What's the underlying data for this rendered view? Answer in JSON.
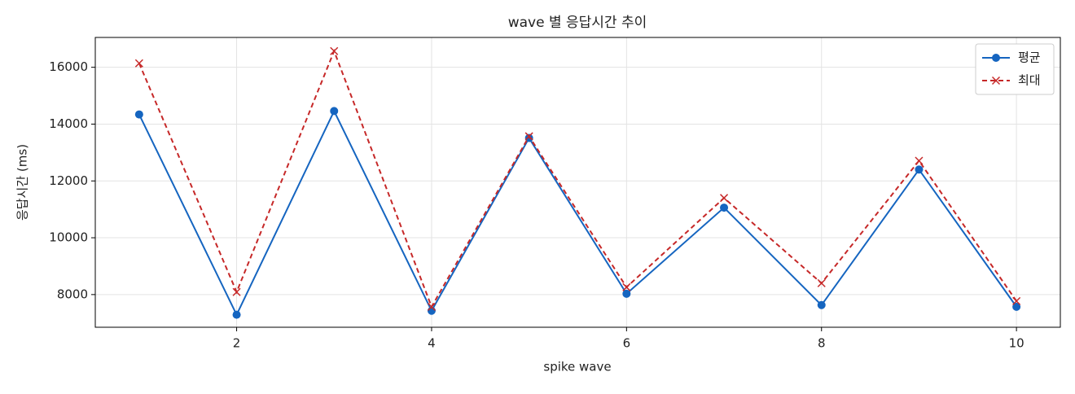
{
  "chart_data": {
    "type": "line",
    "title": "wave 별 응답시간 추이",
    "x_label": "spike wave",
    "y_label": "응답시간 (ms)",
    "x": [
      1,
      2,
      3,
      4,
      5,
      6,
      7,
      8,
      9,
      10
    ],
    "series": [
      {
        "name": "평균",
        "color": "#1565c0",
        "marker": "o",
        "dash": false,
        "values": [
          14340,
          7290,
          14460,
          7430,
          13510,
          8030,
          11060,
          7630,
          12400,
          7570
        ]
      },
      {
        "name": "최대",
        "color": "#c62828",
        "marker": "x",
        "dash": true,
        "values": [
          16140,
          8090,
          16570,
          7570,
          13570,
          8260,
          11400,
          8400,
          12710,
          7770
        ]
      }
    ],
    "xlim": [
      0.55,
      10.45
    ],
    "ylim": [
      6850,
      17050
    ],
    "xticks": [
      2,
      4,
      6,
      8,
      10
    ],
    "yticks": [
      8000,
      10000,
      12000,
      14000,
      16000
    ],
    "grid": true,
    "legend": "upper right"
  }
}
